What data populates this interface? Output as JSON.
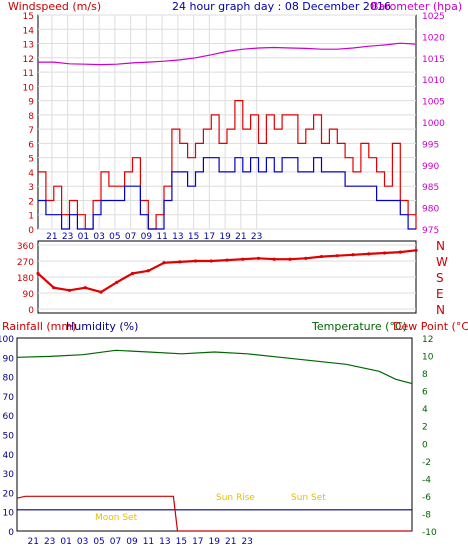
{
  "header": {
    "left": "Windspeed (m/s)",
    "center": "24 hour graph day : 08 December 2016",
    "right": "Barometer (hpa)"
  },
  "mid_header": {
    "rainfall": "Rainfall (mm)",
    "humidity": "Humidity (%)",
    "temperature": "Temperature (°C)",
    "dewpoint": "Dew Point (°C)"
  },
  "compass": [
    "N",
    "W",
    "S",
    "E",
    "N"
  ],
  "colors": {
    "wind": "#e00000",
    "gust_avg": "#0000cc",
    "barometer": "#cc00cc",
    "temperature": "#006600",
    "humidity": "#00008b",
    "rain": "#cc0000",
    "label_yellow": "#e6c000",
    "grid": "#dedede"
  },
  "chart_data": [
    {
      "type": "line",
      "title": "24 hour graph day : 08 December 2016",
      "x_ticks": [
        "21",
        "23",
        "01",
        "03",
        "05",
        "07",
        "09",
        "11",
        "13",
        "15",
        "17",
        "19",
        "21",
        "23"
      ],
      "y_left": {
        "label": "Windspeed (m/s)",
        "ylim": [
          0,
          15
        ],
        "ticks": [
          0,
          1,
          2,
          3,
          4,
          5,
          6,
          7,
          8,
          9,
          10,
          11,
          12,
          13,
          14,
          15
        ]
      },
      "y_right": {
        "label": "Barometer (hpa)",
        "ylim": [
          975,
          1025
        ],
        "ticks": [
          975,
          980,
          985,
          990,
          995,
          1000,
          1005,
          1010,
          1015,
          1020,
          1025
        ]
      },
      "series": [
        {
          "name": "wind",
          "axis": "left",
          "x": [
            0,
            1,
            2,
            3,
            4,
            5,
            6,
            7,
            8,
            9,
            10,
            11,
            12,
            13,
            14,
            15,
            16,
            17,
            18,
            19,
            20,
            21,
            22,
            23,
            24,
            25,
            26,
            27,
            28,
            29,
            30,
            31,
            32,
            33,
            34,
            35,
            36,
            37,
            38,
            39,
            40,
            41,
            42,
            43,
            44,
            45,
            46,
            47,
            48
          ],
          "values": [
            4,
            2,
            3,
            1,
            2,
            1,
            0,
            2,
            4,
            3,
            3,
            4,
            5,
            2,
            0,
            1,
            3,
            7,
            6,
            5,
            6,
            7,
            8,
            6,
            7,
            9,
            7,
            8,
            6,
            8,
            7,
            8,
            8,
            6,
            7,
            8,
            6,
            7,
            6,
            5,
            4,
            6,
            5,
            4,
            3,
            6,
            2,
            1,
            0
          ]
        },
        {
          "name": "gust_avg",
          "axis": "left",
          "x": [
            0,
            1,
            2,
            3,
            4,
            5,
            6,
            7,
            8,
            9,
            10,
            11,
            12,
            13,
            14,
            15,
            16,
            17,
            18,
            19,
            20,
            21,
            22,
            23,
            24,
            25,
            26,
            27,
            28,
            29,
            30,
            31,
            32,
            33,
            34,
            35,
            36,
            37,
            38,
            39,
            40,
            41,
            42,
            43,
            44,
            45,
            46,
            47,
            48
          ],
          "values": [
            2,
            1,
            1,
            0,
            1,
            0,
            0,
            1,
            2,
            2,
            2,
            3,
            3,
            1,
            0,
            0,
            2,
            4,
            4,
            3,
            4,
            5,
            5,
            4,
            4,
            5,
            4,
            5,
            4,
            5,
            4,
            5,
            5,
            4,
            4,
            5,
            4,
            4,
            4,
            3,
            3,
            3,
            3,
            2,
            2,
            2,
            1,
            0,
            0
          ]
        },
        {
          "name": "barometer",
          "axis": "right",
          "x": [
            0,
            2,
            4,
            6,
            8,
            10,
            12,
            14,
            16,
            18,
            20,
            22,
            24,
            26,
            28,
            30,
            32,
            34,
            36,
            38,
            40,
            42,
            44,
            46,
            48
          ],
          "values": [
            1014,
            1014,
            1013.6,
            1013.5,
            1013.4,
            1013.5,
            1013.8,
            1014,
            1014.2,
            1014.5,
            1015,
            1015.7,
            1016.5,
            1017,
            1017.3,
            1017.4,
            1017.3,
            1017.2,
            1017,
            1017,
            1017.3,
            1017.7,
            1018,
            1018.4,
            1018.2
          ]
        }
      ]
    },
    {
      "type": "line",
      "title": "",
      "y_left": {
        "label": "",
        "ylim": [
          0,
          360
        ],
        "ticks": [
          0,
          90,
          180,
          270,
          360
        ]
      },
      "series": [
        {
          "name": "wind direction",
          "x": [
            0,
            2,
            4,
            6,
            8,
            10,
            12,
            14,
            16,
            18,
            20,
            22,
            24,
            26,
            28,
            30,
            32,
            34,
            36,
            38,
            40,
            42,
            44,
            46,
            48
          ],
          "values": [
            200,
            120,
            105,
            120,
            95,
            150,
            200,
            215,
            260,
            265,
            270,
            270,
            275,
            280,
            285,
            280,
            280,
            285,
            295,
            300,
            305,
            310,
            315,
            320,
            330
          ]
        }
      ]
    },
    {
      "type": "line",
      "x_ticks": [
        "21",
        "23",
        "01",
        "03",
        "05",
        "07",
        "09",
        "11",
        "13",
        "15",
        "17",
        "19",
        "21",
        "23"
      ],
      "y_left": {
        "label": "Rainfall (mm) Humidity (%)",
        "ylim": [
          0,
          100
        ],
        "ticks": [
          0,
          10,
          20,
          30,
          40,
          50,
          60,
          70,
          80,
          90,
          100
        ]
      },
      "y_right": {
        "label": "Temperature (°C)",
        "ylim": [
          -10,
          12
        ],
        "ticks": [
          -10,
          -8,
          -6,
          -4,
          -2,
          0,
          2,
          4,
          6,
          8,
          10,
          12
        ]
      },
      "series": [
        {
          "name": "temperature",
          "axis": "right",
          "x": [
            0,
            4,
            8,
            12,
            16,
            20,
            24,
            28,
            32,
            36,
            40,
            44,
            46,
            48
          ],
          "values": [
            9.8,
            9.9,
            10.1,
            10.6,
            10.4,
            10.2,
            10.4,
            10.2,
            9.8,
            9.4,
            9.0,
            8.2,
            7.3,
            6.8
          ]
        },
        {
          "name": "humidity",
          "axis": "left",
          "x": [
            0,
            48
          ],
          "values": [
            11,
            11
          ]
        },
        {
          "name": "rain",
          "axis": "left",
          "x": [
            0,
            1,
            19,
            19.5,
            20,
            48
          ],
          "values": [
            17,
            18,
            18,
            0,
            0,
            0
          ]
        }
      ],
      "annotations": [
        "Moon Set",
        "Sun Rise",
        "Sun Set"
      ]
    }
  ]
}
